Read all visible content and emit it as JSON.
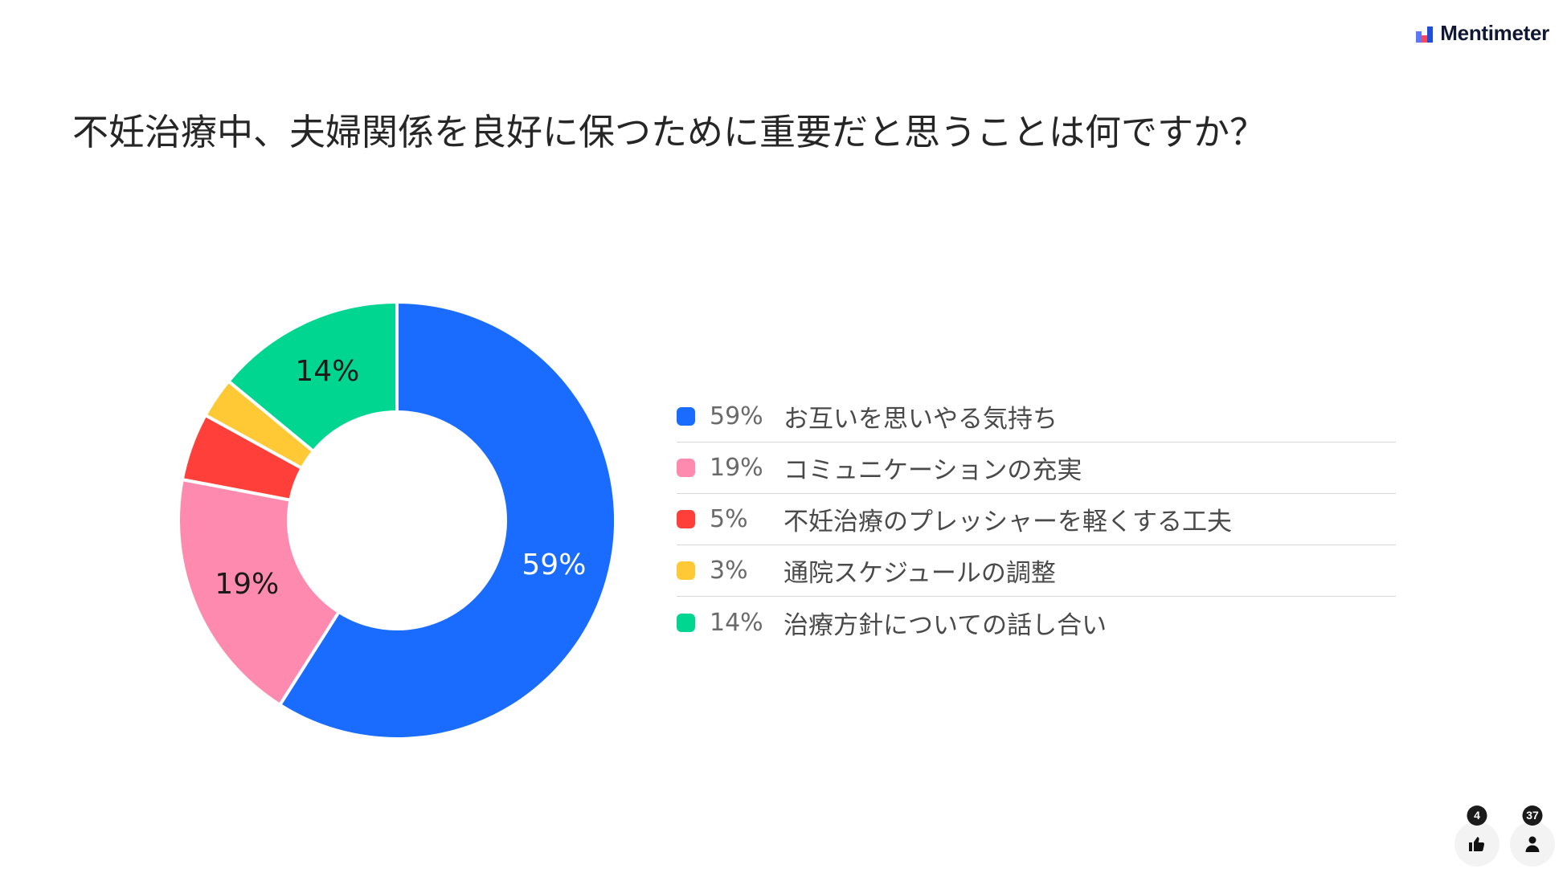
{
  "brand": {
    "name": "Mentimeter",
    "logo_icon": "mentimeter-logo-icon",
    "logo_colors": [
      "#5a77ff",
      "#ff4658",
      "#1d4fd8"
    ]
  },
  "question": {
    "title": "不妊治療中、夫婦関係を良好に保つために重要だと思うことは何ですか？"
  },
  "chart_data": {
    "type": "pie",
    "style": "donut",
    "title": "",
    "categories": [
      "お互いを思いやる気持ち",
      "コミュニケーションの充実",
      "不妊治療のプレッシャーを軽くする工夫",
      "通院スケジュールの調整",
      "治療方針についての話し合い"
    ],
    "values": [
      59,
      19,
      5,
      3,
      14
    ],
    "value_labels": [
      "59%",
      "19%",
      "5%",
      "3%",
      "14%"
    ],
    "colors": [
      "#196cff",
      "#ff8ab0",
      "#ff403a",
      "#ffc936",
      "#00d68f"
    ],
    "label_colors": [
      "#ffffff",
      "#1a1a1a",
      "#1a1a1a",
      "#1a1a1a",
      "#1a1a1a"
    ],
    "slice_labels_shown": [
      true,
      true,
      false,
      false,
      true
    ],
    "legend_position": "right"
  },
  "reactions": {
    "count": "4",
    "icon": "thumbs-up-icon"
  },
  "participants": {
    "count": "37",
    "icon": "person-icon"
  }
}
